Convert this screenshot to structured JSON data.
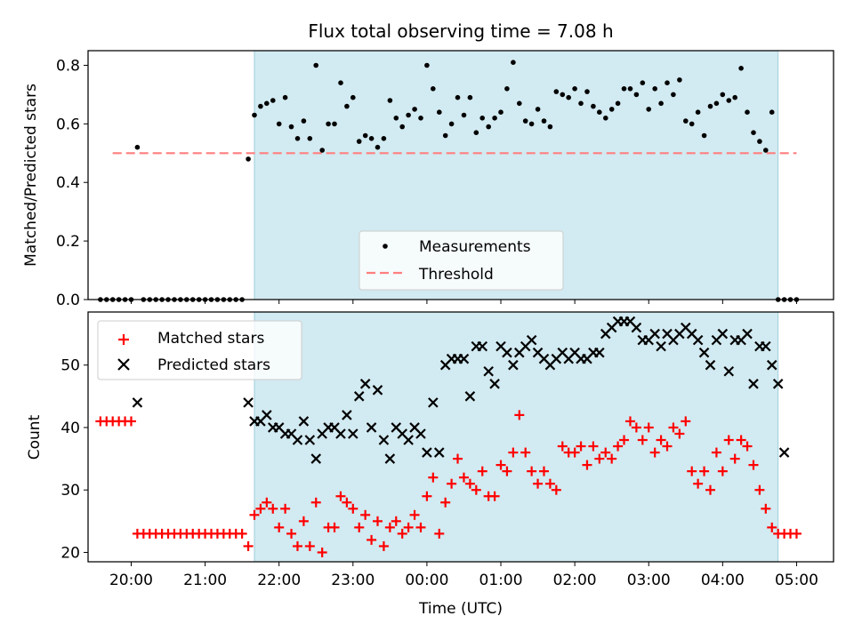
{
  "chart_data": [
    {
      "type": "scatter",
      "title": "Flux total observing time = 7.08 h",
      "xlabel": "",
      "ylabel": "Matched/Predicted stars",
      "xlim": [
        "19:25",
        "05:30"
      ],
      "ylim": [
        0,
        0.85
      ],
      "yticks": [
        0.0,
        0.2,
        0.4,
        0.6,
        0.8
      ],
      "ytick_labels": [
        "0.0",
        "0.2",
        "0.4",
        "0.6",
        "0.8"
      ],
      "observing_window": [
        "21:40",
        "04:45"
      ],
      "observing_window_color": "#add8e6",
      "legend_position": "lower center",
      "legend": [
        {
          "label": "Measurements",
          "marker": "dot",
          "color": "#000000"
        },
        {
          "label": "Threshold",
          "marker": "dashed-line",
          "color": "#ff7f7f"
        }
      ],
      "threshold": {
        "name": "Threshold",
        "y": 0.5,
        "x_range": [
          "19:45",
          "05:00"
        ],
        "color": "#ff7f7f"
      },
      "series": [
        {
          "name": "Measurements",
          "color": "#000000",
          "x": [
            "19:35",
            "19:40",
            "19:45",
            "19:50",
            "19:55",
            "20:00",
            "20:05",
            "20:10",
            "20:15",
            "20:20",
            "20:25",
            "20:30",
            "20:35",
            "20:40",
            "20:45",
            "20:50",
            "20:55",
            "21:00",
            "21:05",
            "21:10",
            "21:15",
            "21:20",
            "21:25",
            "21:30",
            "21:35",
            "21:40",
            "21:45",
            "21:50",
            "21:55",
            "22:00",
            "22:05",
            "22:10",
            "22:15",
            "22:20",
            "22:25",
            "22:30",
            "22:35",
            "22:40",
            "22:45",
            "22:50",
            "22:55",
            "23:00",
            "23:05",
            "23:10",
            "23:15",
            "23:20",
            "23:25",
            "23:30",
            "23:35",
            "23:40",
            "23:45",
            "23:50",
            "23:55",
            "00:00",
            "00:05",
            "00:10",
            "00:15",
            "00:20",
            "00:25",
            "00:30",
            "00:35",
            "00:40",
            "00:45",
            "00:50",
            "00:55",
            "01:00",
            "01:05",
            "01:10",
            "01:15",
            "01:20",
            "01:25",
            "01:30",
            "01:35",
            "01:40",
            "01:45",
            "01:50",
            "01:55",
            "02:00",
            "02:05",
            "02:10",
            "02:15",
            "02:20",
            "02:25",
            "02:30",
            "02:35",
            "02:40",
            "02:45",
            "02:50",
            "02:55",
            "03:00",
            "03:05",
            "03:10",
            "03:15",
            "03:20",
            "03:25",
            "03:30",
            "03:35",
            "03:40",
            "03:45",
            "03:50",
            "03:55",
            "04:00",
            "04:05",
            "04:10",
            "04:15",
            "04:20",
            "04:25",
            "04:30",
            "04:35",
            "04:40",
            "04:45",
            "04:50",
            "04:55",
            "05:00"
          ],
          "y": [
            0,
            0,
            0,
            0,
            0,
            0,
            0.52,
            0,
            0,
            0,
            0,
            0,
            0,
            0,
            0,
            0,
            0,
            0,
            0,
            0,
            0,
            0,
            0,
            0,
            0.48,
            0.63,
            0.66,
            0.67,
            0.68,
            0.6,
            0.69,
            0.59,
            0.55,
            0.61,
            0.55,
            0.8,
            0.51,
            0.6,
            0.6,
            0.74,
            0.66,
            0.69,
            0.54,
            0.56,
            0.55,
            0.52,
            0.55,
            0.68,
            0.62,
            0.59,
            0.63,
            0.65,
            0.62,
            0.8,
            0.72,
            0.64,
            0.56,
            0.6,
            0.69,
            0.63,
            0.69,
            0.57,
            0.62,
            0.59,
            0.62,
            0.64,
            0.72,
            0.81,
            0.67,
            0.61,
            0.6,
            0.65,
            0.61,
            0.59,
            0.71,
            0.7,
            0.69,
            0.72,
            0.67,
            0.71,
            0.66,
            0.64,
            0.62,
            0.65,
            0.67,
            0.72,
            0.72,
            0.7,
            0.74,
            0.65,
            0.72,
            0.67,
            0.74,
            0.7,
            0.75,
            0.61,
            0.6,
            0.64,
            0.56,
            0.66,
            0.67,
            0.7,
            0.68,
            0.69,
            0.79,
            0.64,
            0.57,
            0.54,
            0.51,
            0.64,
            0,
            0,
            0,
            0
          ]
        }
      ]
    },
    {
      "type": "scatter",
      "title": "",
      "xlabel": "Time (UTC)",
      "ylabel": "Count",
      "xlim": [
        "19:25",
        "05:30"
      ],
      "ylim": [
        18.5,
        58.5
      ],
      "yticks": [
        20,
        30,
        40,
        50
      ],
      "ytick_labels": [
        "20",
        "30",
        "40",
        "50"
      ],
      "xticks": [
        "20:00",
        "21:00",
        "22:00",
        "23:00",
        "00:00",
        "01:00",
        "02:00",
        "03:00",
        "04:00",
        "05:00"
      ],
      "observing_window": [
        "21:40",
        "04:45"
      ],
      "observing_window_color": "#add8e6",
      "legend_position": "upper left",
      "legend": [
        {
          "label": "Matched stars",
          "marker": "plus",
          "color": "#ff0000"
        },
        {
          "label": "Predicted stars",
          "marker": "x",
          "color": "#000000"
        }
      ],
      "series": [
        {
          "name": "Matched stars",
          "marker": "plus",
          "color": "#ff0000",
          "x": [
            "19:35",
            "19:40",
            "19:45",
            "19:50",
            "19:55",
            "20:00",
            "20:05",
            "20:10",
            "20:15",
            "20:20",
            "20:25",
            "20:30",
            "20:35",
            "20:40",
            "20:45",
            "20:50",
            "20:55",
            "21:00",
            "21:05",
            "21:10",
            "21:15",
            "21:20",
            "21:25",
            "21:30",
            "21:35",
            "21:40",
            "21:45",
            "21:50",
            "21:55",
            "22:00",
            "22:05",
            "22:10",
            "22:15",
            "22:20",
            "22:25",
            "22:30",
            "22:35",
            "22:40",
            "22:45",
            "22:50",
            "22:55",
            "23:00",
            "23:05",
            "23:10",
            "23:15",
            "23:20",
            "23:25",
            "23:30",
            "23:35",
            "23:40",
            "23:45",
            "23:50",
            "23:55",
            "00:00",
            "00:05",
            "00:10",
            "00:15",
            "00:20",
            "00:25",
            "00:30",
            "00:35",
            "00:40",
            "00:45",
            "00:50",
            "00:55",
            "01:00",
            "01:05",
            "01:10",
            "01:15",
            "01:20",
            "01:25",
            "01:30",
            "01:35",
            "01:40",
            "01:45",
            "01:50",
            "01:55",
            "02:00",
            "02:05",
            "02:10",
            "02:15",
            "02:20",
            "02:25",
            "02:30",
            "02:35",
            "02:40",
            "02:45",
            "02:50",
            "02:55",
            "03:00",
            "03:05",
            "03:10",
            "03:15",
            "03:20",
            "03:25",
            "03:30",
            "03:35",
            "03:40",
            "03:45",
            "03:50",
            "03:55",
            "04:00",
            "04:05",
            "04:10",
            "04:15",
            "04:20",
            "04:25",
            "04:30",
            "04:35",
            "04:40",
            "04:45",
            "04:50",
            "04:55",
            "05:00"
          ],
          "y": [
            41,
            41,
            41,
            41,
            41,
            41,
            23,
            23,
            23,
            23,
            23,
            23,
            23,
            23,
            23,
            23,
            23,
            23,
            23,
            23,
            23,
            23,
            23,
            23,
            21,
            26,
            27,
            28,
            27,
            24,
            27,
            23,
            21,
            25,
            21,
            28,
            20,
            24,
            24,
            29,
            28,
            27,
            24,
            26,
            22,
            25,
            21,
            24,
            25,
            23,
            24,
            26,
            24,
            29,
            32,
            23,
            28,
            31,
            35,
            32,
            31,
            30,
            33,
            29,
            29,
            34,
            33,
            36,
            42,
            36,
            33,
            31,
            33,
            31,
            30,
            37,
            36,
            36,
            37,
            34,
            37,
            35,
            36,
            35,
            37,
            38,
            41,
            40,
            38,
            40,
            36,
            38,
            37,
            40,
            39,
            41,
            33,
            31,
            33,
            30,
            36,
            33,
            38,
            35,
            38,
            37,
            34,
            30,
            27,
            24,
            23,
            23,
            23,
            23
          ]
        },
        {
          "name": "Predicted stars",
          "marker": "x",
          "color": "#000000",
          "x": [
            "20:05",
            "21:35",
            "21:40",
            "21:45",
            "21:50",
            "21:55",
            "22:00",
            "22:05",
            "22:10",
            "22:15",
            "22:20",
            "22:25",
            "22:30",
            "22:35",
            "22:40",
            "22:45",
            "22:50",
            "22:55",
            "23:00",
            "23:05",
            "23:10",
            "23:15",
            "23:20",
            "23:25",
            "23:30",
            "23:35",
            "23:40",
            "23:45",
            "23:50",
            "23:55",
            "00:00",
            "00:05",
            "00:10",
            "00:15",
            "00:20",
            "00:25",
            "00:30",
            "00:35",
            "00:40",
            "00:45",
            "00:50",
            "00:55",
            "01:00",
            "01:05",
            "01:10",
            "01:15",
            "01:20",
            "01:25",
            "01:30",
            "01:35",
            "01:40",
            "01:45",
            "01:50",
            "01:55",
            "02:00",
            "02:05",
            "02:10",
            "02:15",
            "02:20",
            "02:25",
            "02:30",
            "02:35",
            "02:40",
            "02:45",
            "02:50",
            "02:55",
            "03:00",
            "03:05",
            "03:10",
            "03:15",
            "03:20",
            "03:25",
            "03:30",
            "03:35",
            "03:40",
            "03:45",
            "03:50",
            "03:55",
            "04:00",
            "04:05",
            "04:10",
            "04:15",
            "04:20",
            "04:25",
            "04:30",
            "04:35",
            "04:40",
            "04:45",
            "04:50"
          ],
          "y": [
            44,
            44,
            41,
            41,
            42,
            40,
            40,
            39,
            39,
            38,
            41,
            38,
            35,
            39,
            40,
            40,
            39,
            42,
            39,
            45,
            47,
            40,
            46,
            38,
            35,
            40,
            39,
            38,
            40,
            39,
            36,
            44,
            36,
            50,
            51,
            51,
            51,
            45,
            53,
            53,
            49,
            47,
            53,
            52,
            50,
            52,
            53,
            54,
            52,
            51,
            50,
            51,
            52,
            51,
            52,
            51,
            51,
            52,
            52,
            55,
            56,
            57,
            57,
            57,
            56,
            54,
            54,
            55,
            53,
            55,
            54,
            55,
            56,
            55,
            54,
            52,
            50,
            54,
            55,
            49,
            54,
            54,
            55,
            47,
            53,
            53,
            50,
            47,
            36
          ]
        }
      ]
    }
  ]
}
